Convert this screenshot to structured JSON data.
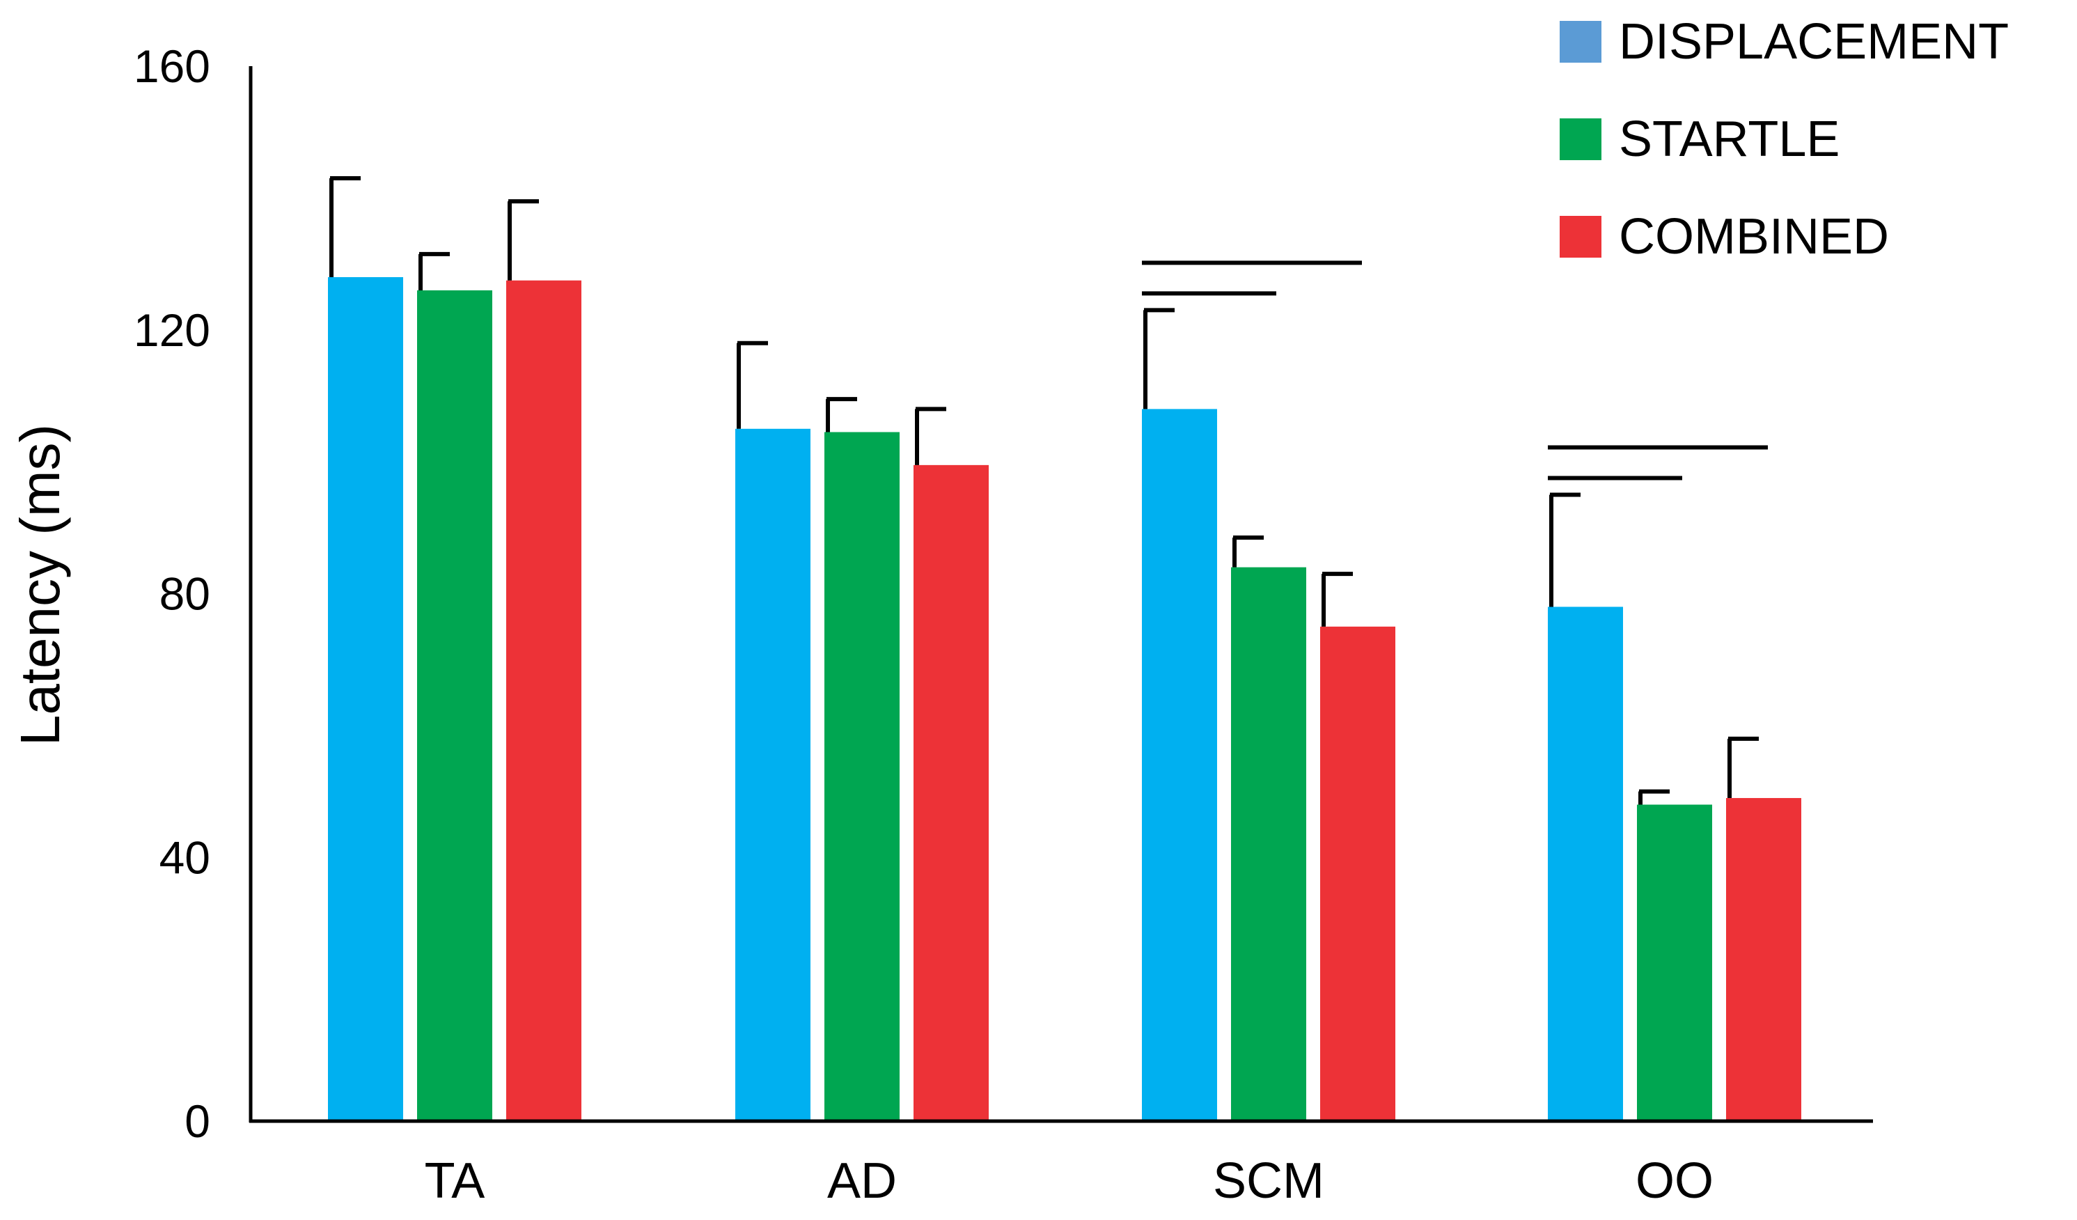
{
  "chart_data": {
    "type": "bar",
    "title": "",
    "xlabel": "",
    "ylabel": "Latency (ms)",
    "ylim": [
      0,
      160
    ],
    "yticks": [
      0,
      40,
      80,
      120,
      160
    ],
    "grid": false,
    "legend_position": "top-right",
    "categories": [
      "TA",
      "AD",
      "SCM",
      "OO"
    ],
    "series": [
      {
        "name": "DISPLACEMENT",
        "color": "#00B0F0",
        "legend_color": "#5B9BD5",
        "values": [
          128,
          105,
          108,
          78
        ],
        "errors": [
          15,
          13,
          15,
          17
        ]
      },
      {
        "name": "STARTLE",
        "color": "#00A651",
        "legend_color": "#00A651",
        "values": [
          126,
          104.5,
          84,
          48
        ],
        "errors": [
          5.5,
          5,
          4.5,
          2
        ]
      },
      {
        "name": "COMBINED",
        "color": "#ED3237",
        "legend_color": "#ED3237",
        "values": [
          127.5,
          99.5,
          75,
          49
        ],
        "errors": [
          12,
          8.5,
          8,
          9
        ]
      }
    ],
    "significance": [
      {
        "category": "SCM",
        "from_series": 0,
        "to_series": 1
      },
      {
        "category": "SCM",
        "from_series": 0,
        "to_series": 2
      },
      {
        "category": "OO",
        "from_series": 0,
        "to_series": 1
      },
      {
        "category": "OO",
        "from_series": 0,
        "to_series": 2
      }
    ]
  }
}
